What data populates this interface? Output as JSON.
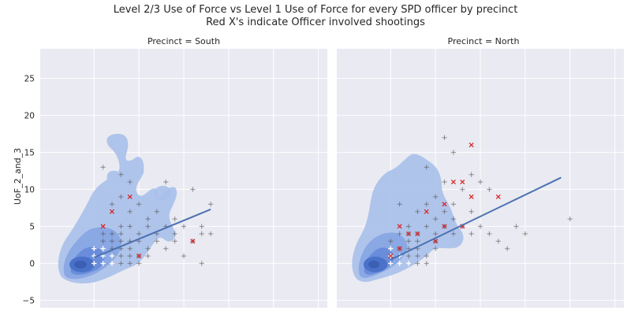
{
  "chart_data": {
    "type": "scatter",
    "title": "Level 2/3 Use of Force vs Level 1 Use of Force for every SPD officer by precinct",
    "subtitle": "Red X's indicate Officer involved shootings",
    "ylabel": "UoF_2_and_3",
    "ylim": [
      -6,
      29
    ],
    "xlim": [
      -6,
      26
    ],
    "yticks": [
      -5,
      0,
      5,
      10,
      15,
      20,
      25
    ],
    "panels": [
      {
        "title": "Precinct = South",
        "gray_points": [
          [
            0,
            0
          ],
          [
            1,
            0
          ],
          [
            2,
            0
          ],
          [
            3,
            0
          ],
          [
            4,
            0
          ],
          [
            5,
            0
          ],
          [
            0,
            1
          ],
          [
            1,
            1
          ],
          [
            2,
            1
          ],
          [
            3,
            1
          ],
          [
            4,
            1
          ],
          [
            5,
            1
          ],
          [
            6,
            1
          ],
          [
            0,
            2
          ],
          [
            1,
            2
          ],
          [
            2,
            2
          ],
          [
            3,
            2
          ],
          [
            4,
            2
          ],
          [
            6,
            2
          ],
          [
            1,
            3
          ],
          [
            2,
            3
          ],
          [
            3,
            3
          ],
          [
            4,
            3
          ],
          [
            5,
            3
          ],
          [
            7,
            3
          ],
          [
            1,
            4
          ],
          [
            2,
            4
          ],
          [
            3,
            4
          ],
          [
            5,
            4
          ],
          [
            7,
            4
          ],
          [
            9,
            4
          ],
          [
            12,
            4
          ],
          [
            3,
            5
          ],
          [
            4,
            5
          ],
          [
            6,
            5
          ],
          [
            8,
            5
          ],
          [
            10,
            5
          ],
          [
            6,
            6
          ],
          [
            9,
            6
          ],
          [
            4,
            7
          ],
          [
            7,
            7
          ],
          [
            2,
            8
          ],
          [
            5,
            8
          ],
          [
            3,
            9
          ],
          [
            1,
            13
          ],
          [
            3,
            12
          ],
          [
            4,
            11
          ],
          [
            8,
            11
          ],
          [
            11,
            10
          ],
          [
            13,
            8
          ],
          [
            12,
            5
          ],
          [
            9,
            3
          ],
          [
            11,
            3
          ],
          [
            8,
            2
          ],
          [
            13,
            4
          ],
          [
            10,
            1
          ],
          [
            12,
            0
          ]
        ],
        "red_x": [
          [
            1,
            5
          ],
          [
            2,
            7
          ],
          [
            4,
            9
          ],
          [
            5,
            1
          ],
          [
            11,
            3
          ]
        ],
        "white_points": [
          [
            0,
            0
          ],
          [
            1,
            0
          ],
          [
            0,
            1
          ],
          [
            1,
            1
          ],
          [
            2,
            0
          ],
          [
            0,
            2
          ],
          [
            1,
            2
          ],
          [
            2,
            1
          ]
        ],
        "regression": {
          "x": [
            0,
            13
          ],
          "y": [
            0.8,
            7.3
          ]
        }
      },
      {
        "title": "Precinct = North",
        "gray_points": [
          [
            0,
            0
          ],
          [
            1,
            0
          ],
          [
            2,
            0
          ],
          [
            3,
            0
          ],
          [
            4,
            0
          ],
          [
            0,
            1
          ],
          [
            1,
            1
          ],
          [
            2,
            1
          ],
          [
            3,
            1
          ],
          [
            4,
            1
          ],
          [
            0,
            2
          ],
          [
            1,
            2
          ],
          [
            2,
            2
          ],
          [
            3,
            2
          ],
          [
            5,
            2
          ],
          [
            0,
            3
          ],
          [
            2,
            3
          ],
          [
            3,
            3
          ],
          [
            5,
            3
          ],
          [
            1,
            4
          ],
          [
            2,
            4
          ],
          [
            3,
            4
          ],
          [
            5,
            4
          ],
          [
            7,
            4
          ],
          [
            9,
            4
          ],
          [
            2,
            5
          ],
          [
            4,
            5
          ],
          [
            6,
            5
          ],
          [
            8,
            5
          ],
          [
            10,
            5
          ],
          [
            5,
            6
          ],
          [
            7,
            6
          ],
          [
            3,
            7
          ],
          [
            6,
            7
          ],
          [
            9,
            7
          ],
          [
            4,
            8
          ],
          [
            7,
            8
          ],
          [
            1,
            8
          ],
          [
            5,
            9
          ],
          [
            8,
            10
          ],
          [
            6,
            11
          ],
          [
            11,
            10
          ],
          [
            10,
            11
          ],
          [
            6,
            17
          ],
          [
            7,
            15
          ],
          [
            9,
            12
          ],
          [
            4,
            13
          ],
          [
            11,
            4
          ],
          [
            12,
            3
          ],
          [
            14,
            5
          ],
          [
            15,
            4
          ],
          [
            20,
            6
          ],
          [
            13,
            2
          ]
        ],
        "red_x": [
          [
            0,
            1
          ],
          [
            1,
            2
          ],
          [
            2,
            4
          ],
          [
            3,
            4
          ],
          [
            5,
            3
          ],
          [
            6,
            5
          ],
          [
            8,
            5
          ],
          [
            4,
            7
          ],
          [
            6,
            8
          ],
          [
            9,
            9
          ],
          [
            7,
            11
          ],
          [
            8,
            11
          ],
          [
            9,
            16
          ],
          [
            12,
            9
          ],
          [
            1,
            5
          ]
        ],
        "white_points": [
          [
            0,
            0
          ],
          [
            1,
            0
          ],
          [
            0,
            1
          ],
          [
            1,
            1
          ],
          [
            2,
            0
          ],
          [
            0,
            2
          ]
        ],
        "regression": {
          "x": [
            0,
            19
          ],
          "y": [
            0.5,
            11.6
          ]
        }
      }
    ]
  }
}
